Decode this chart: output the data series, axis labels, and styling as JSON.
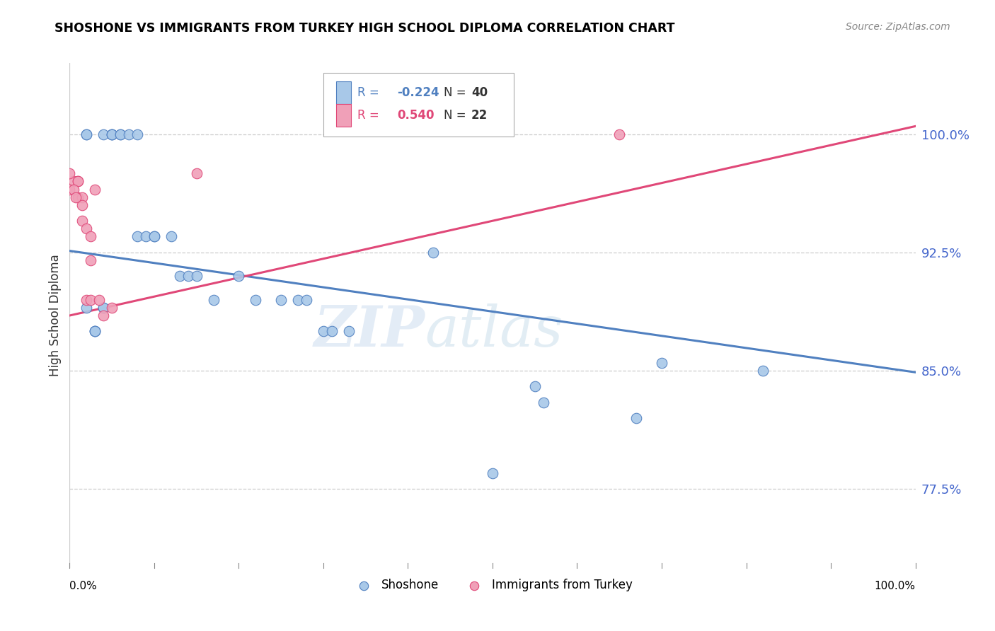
{
  "title": "SHOSHONE VS IMMIGRANTS FROM TURKEY HIGH SCHOOL DIPLOMA CORRELATION CHART",
  "source": "Source: ZipAtlas.com",
  "ylabel": "High School Diploma",
  "ytick_labels": [
    "100.0%",
    "92.5%",
    "85.0%",
    "77.5%"
  ],
  "ytick_values": [
    1.0,
    0.925,
    0.85,
    0.775
  ],
  "xlim": [
    0.0,
    1.0
  ],
  "ylim": [
    0.725,
    1.045
  ],
  "color_blue": "#a8c8e8",
  "color_pink": "#f0a0b8",
  "color_line_blue": "#5080c0",
  "color_line_pink": "#e04878",
  "watermark_zip": "ZIP",
  "watermark_atlas": "atlas",
  "shoshone_x": [
    0.02,
    0.02,
    0.04,
    0.05,
    0.05,
    0.05,
    0.06,
    0.06,
    0.07,
    0.08,
    0.08,
    0.09,
    0.1,
    0.1,
    0.12,
    0.13,
    0.14,
    0.15,
    0.17,
    0.2,
    0.22,
    0.25,
    0.27,
    0.28,
    0.3,
    0.31,
    0.33,
    0.43,
    0.5,
    0.55,
    0.56,
    0.67,
    0.7,
    0.82,
    0.03,
    0.03,
    0.04,
    0.04,
    0.03,
    0.02
  ],
  "shoshone_y": [
    1.0,
    1.0,
    1.0,
    1.0,
    1.0,
    1.0,
    1.0,
    1.0,
    1.0,
    1.0,
    0.935,
    0.935,
    0.935,
    0.935,
    0.935,
    0.91,
    0.91,
    0.91,
    0.895,
    0.91,
    0.895,
    0.895,
    0.895,
    0.895,
    0.875,
    0.875,
    0.875,
    0.925,
    0.785,
    0.84,
    0.83,
    0.82,
    0.855,
    0.85,
    0.875,
    0.875,
    0.89,
    0.89,
    0.875,
    0.89
  ],
  "turkey_x": [
    0.005,
    0.01,
    0.01,
    0.01,
    0.015,
    0.015,
    0.015,
    0.02,
    0.02,
    0.025,
    0.025,
    0.025,
    0.03,
    0.035,
    0.04,
    0.05,
    0.15,
    0.65,
    0.0,
    0.0,
    0.005,
    0.007
  ],
  "turkey_y": [
    0.97,
    0.97,
    0.97,
    0.96,
    0.96,
    0.955,
    0.945,
    0.94,
    0.895,
    0.935,
    0.92,
    0.895,
    0.965,
    0.895,
    0.885,
    0.89,
    0.975,
    1.0,
    0.975,
    0.965,
    0.965,
    0.96
  ],
  "blue_trendline_x": [
    0.0,
    1.0
  ],
  "blue_trendline_y": [
    0.926,
    0.849
  ],
  "pink_trendline_x": [
    0.0,
    1.0
  ],
  "pink_trendline_y": [
    0.885,
    1.005
  ]
}
